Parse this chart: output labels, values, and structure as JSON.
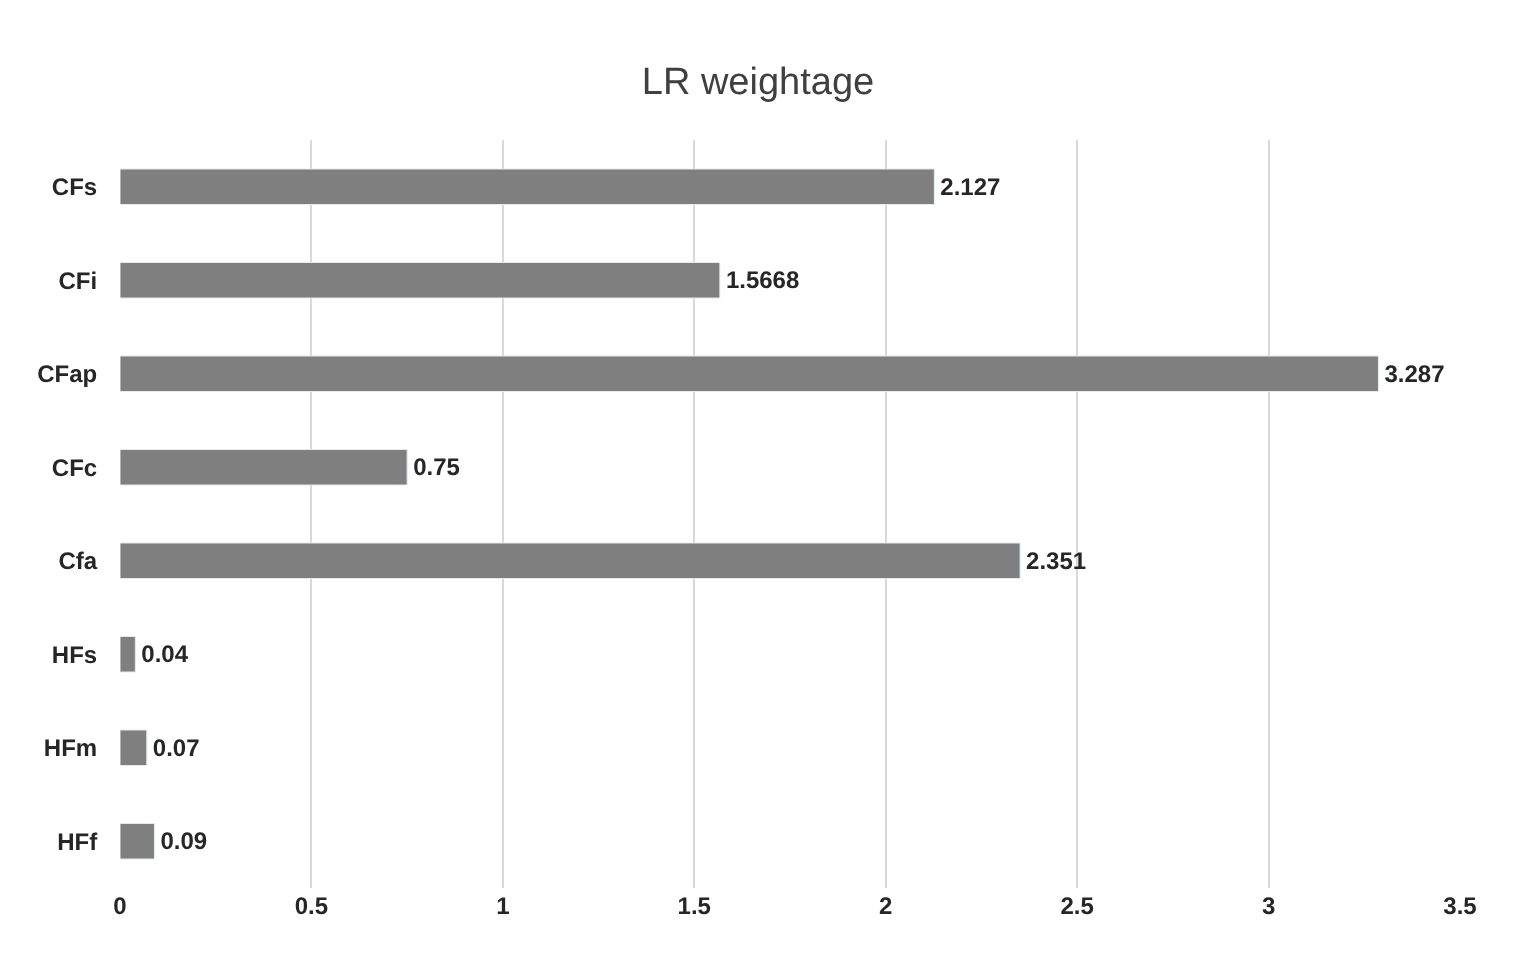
{
  "chart_data": {
    "type": "bar",
    "orientation": "horizontal",
    "title": "LR weightage",
    "categories": [
      "CFs",
      "CFi",
      "CFap",
      "CFc",
      "Cfa",
      "HFs",
      "HFm",
      "HFf"
    ],
    "values": [
      2.127,
      1.5668,
      3.287,
      0.75,
      2.351,
      0.04,
      0.07,
      0.09
    ],
    "color": "#7f7f7f",
    "data_labels": true,
    "xlim": [
      0,
      3.5
    ],
    "xticks": [
      0,
      0.5,
      1,
      1.5,
      2,
      2.5,
      3,
      3.5
    ],
    "grid": "x",
    "legend": false
  }
}
